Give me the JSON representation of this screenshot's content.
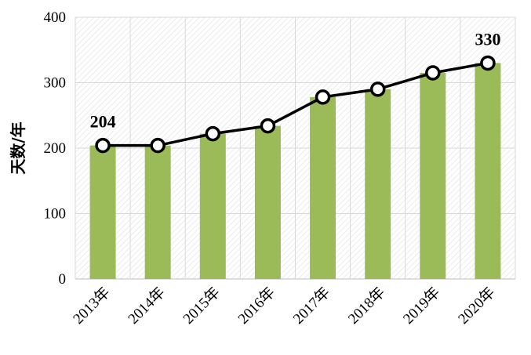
{
  "chart_data": {
    "type": "bar",
    "categories": [
      "2013年",
      "2014年",
      "2015年",
      "2016年",
      "2017年",
      "2018年",
      "2019年",
      "2020年"
    ],
    "series": [
      {
        "type": "bar",
        "values": [
          204,
          204,
          222,
          234,
          278,
          290,
          315,
          330
        ]
      },
      {
        "type": "line",
        "values": [
          204,
          204,
          222,
          234,
          278,
          290,
          315,
          330
        ]
      }
    ],
    "data_labels": [
      {
        "index": 0,
        "text": "204"
      },
      {
        "index": 7,
        "text": "330"
      }
    ],
    "title": "",
    "xlabel": "",
    "ylabel": "天数/年",
    "ylim": [
      0,
      400
    ],
    "yticks": [
      0,
      100,
      200,
      300,
      400
    ],
    "grid": true,
    "legend": "none",
    "colors": {
      "bar": "#9bbb59",
      "line": "#000000",
      "marker_fill": "#ffffff",
      "grid": "#d9d9d9",
      "plot_hatch": "#e6e6e6"
    }
  }
}
